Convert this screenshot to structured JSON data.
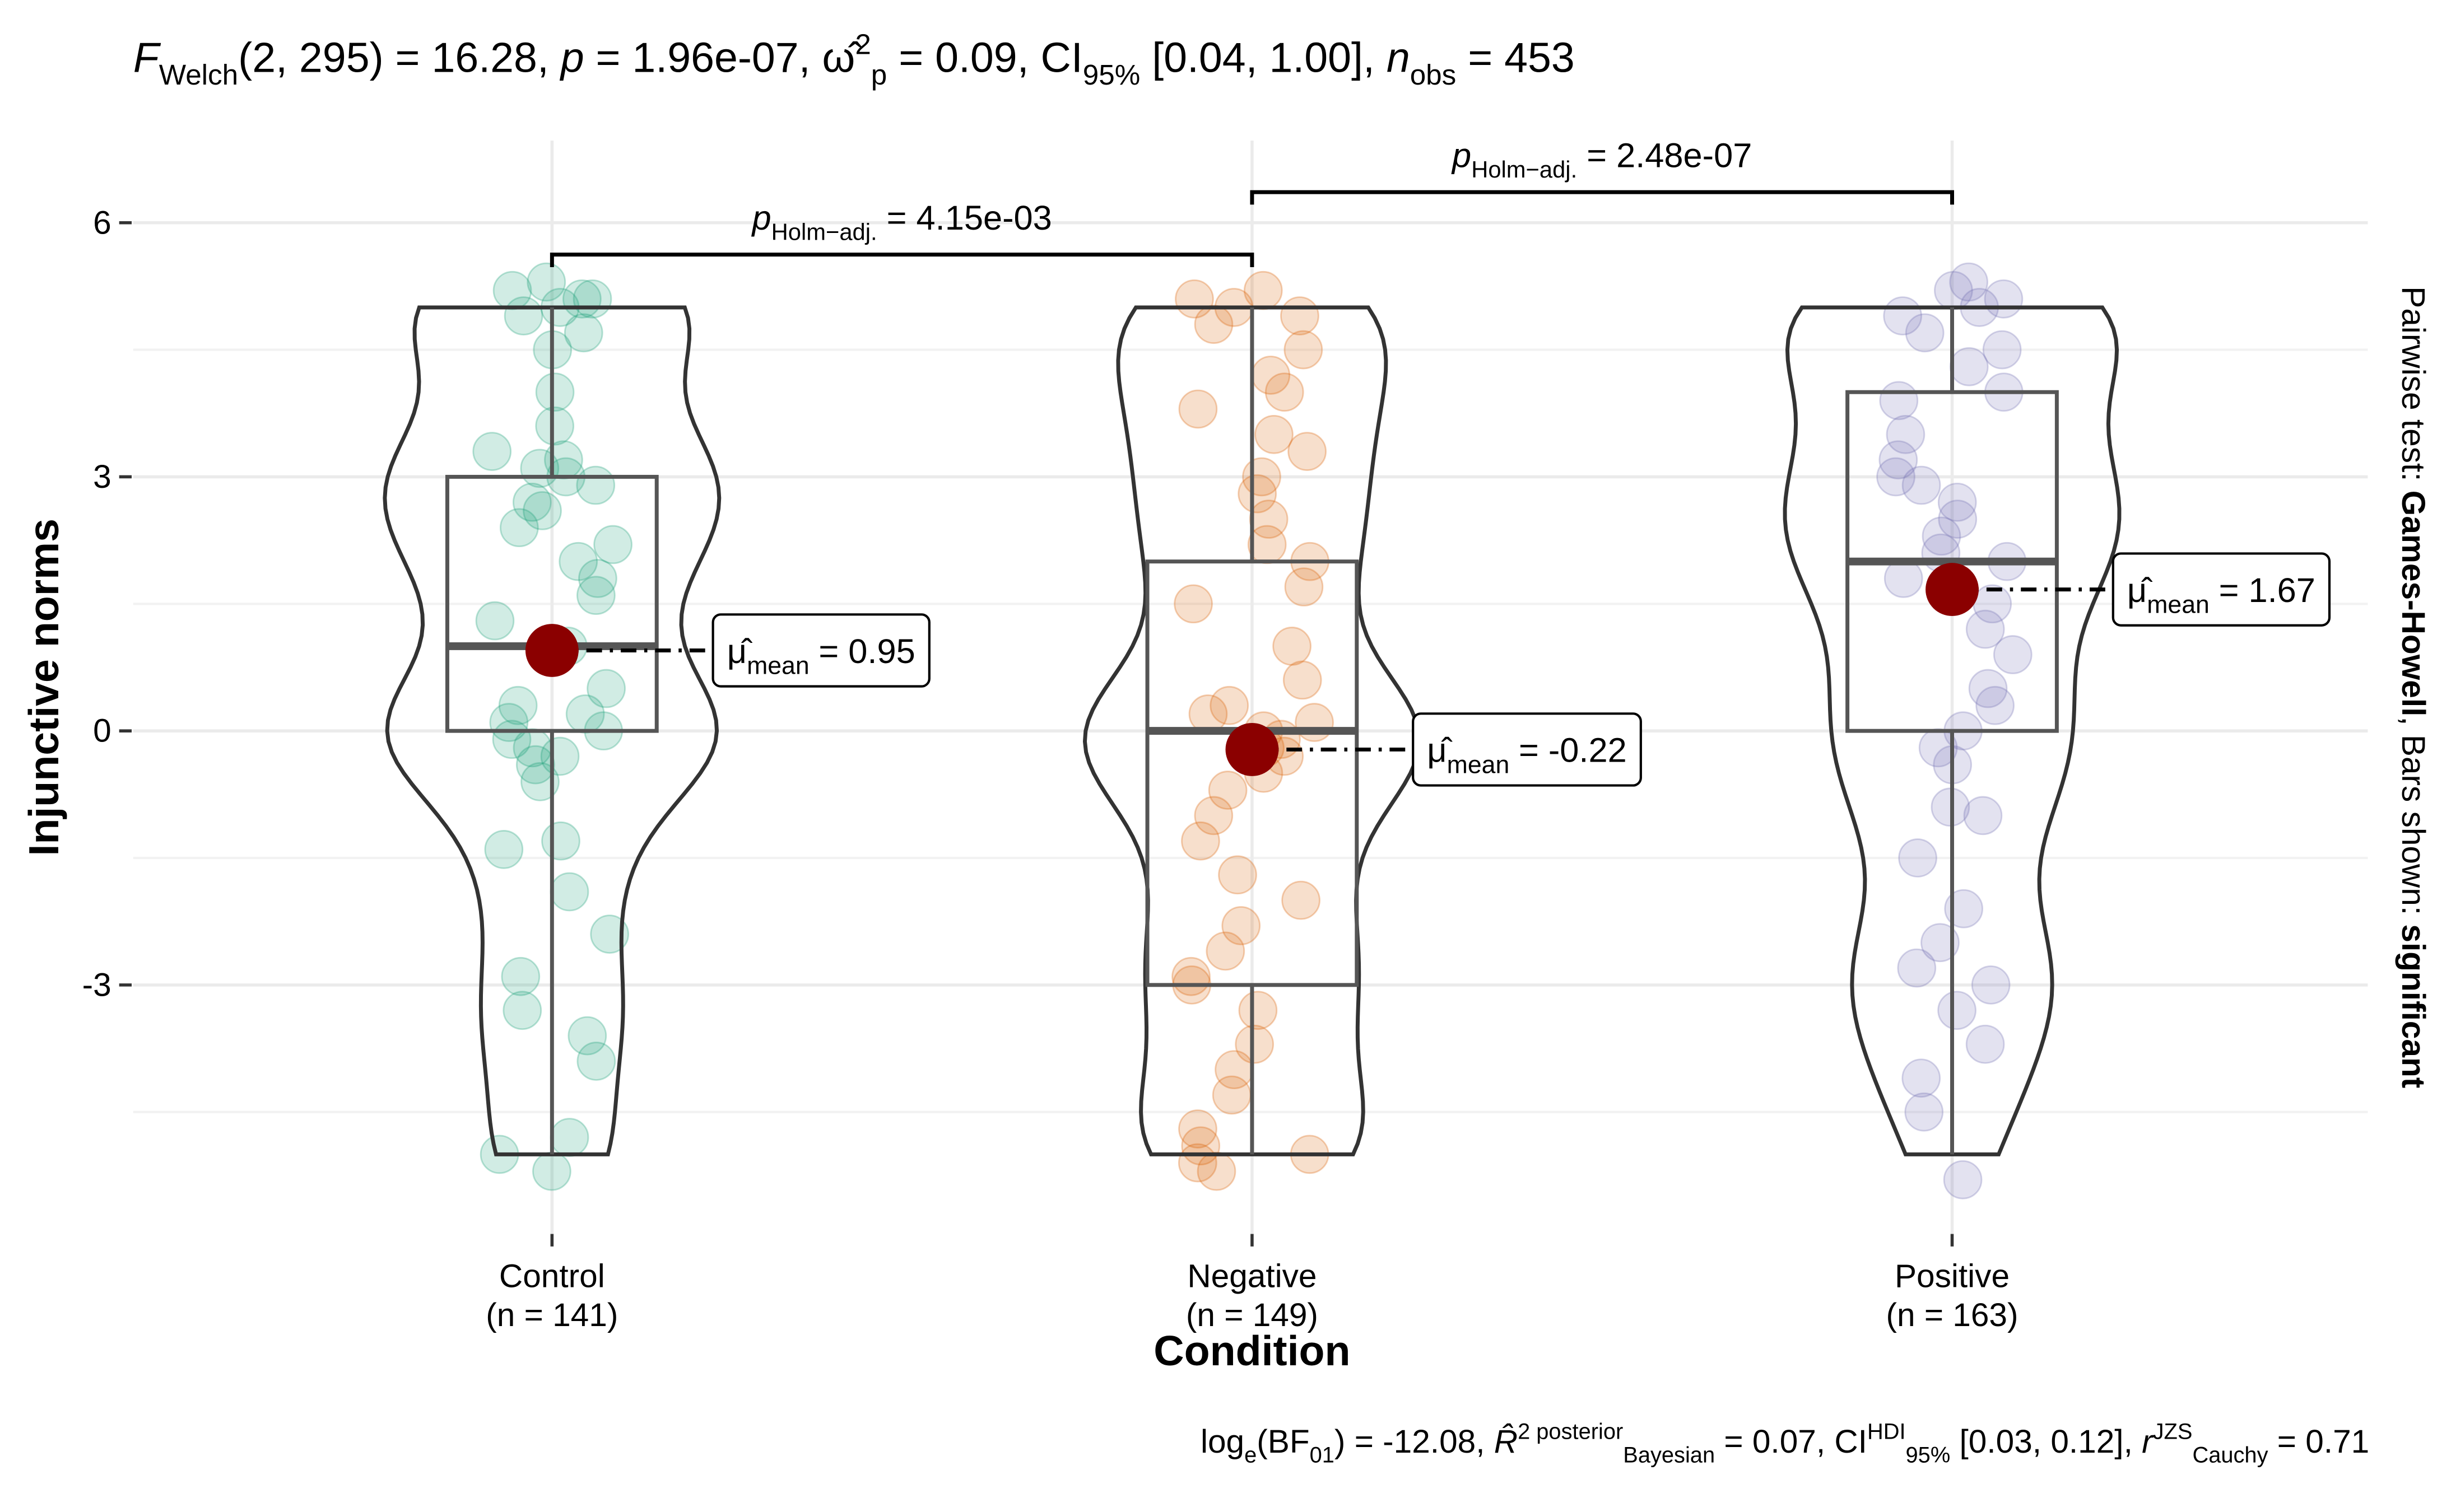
{
  "chart_data": {
    "type": "violin",
    "title_parts": [
      {
        "text": "F",
        "style": "italic"
      },
      {
        "text": "Welch",
        "style": "sub"
      },
      {
        "text": "(2, 295) = 16.28, "
      },
      {
        "text": "p",
        "style": "italic"
      },
      {
        "text": " = 1.96e-07, "
      },
      {
        "text": "ω̂"
      },
      {
        "text": "2",
        "style": "sup"
      },
      {
        "text": "p",
        "style": "sub"
      },
      {
        "text": " = 0.09, CI"
      },
      {
        "text": "95%",
        "style": "sub"
      },
      {
        "text": " [0.04, 1.00], "
      },
      {
        "text": "n",
        "style": "italic"
      },
      {
        "text": "obs",
        "style": "sub"
      },
      {
        "text": " = 453"
      }
    ],
    "caption_parts": [
      {
        "text": "log"
      },
      {
        "text": "e",
        "style": "sub"
      },
      {
        "text": "(BF"
      },
      {
        "text": "01",
        "style": "sub"
      },
      {
        "text": ") = -12.08, "
      },
      {
        "text": "R̂",
        "style": "italic"
      },
      {
        "text": "2 posterior",
        "style": "sup"
      },
      {
        "text": "Bayesian",
        "style": "sub"
      },
      {
        "text": " = 0.07, CI"
      },
      {
        "text": "HDI",
        "style": "sup"
      },
      {
        "text": "95%",
        "style": "sub"
      },
      {
        "text": " [0.03, 0.12], "
      },
      {
        "text": "r",
        "style": "italic"
      },
      {
        "text": "JZS",
        "style": "sup"
      },
      {
        "text": "Cauchy",
        "style": "sub"
      },
      {
        "text": " = 0.71"
      }
    ],
    "side_parts": [
      {
        "text": "Pairwise test: "
      },
      {
        "text": "Games-Howell",
        "style": "bold"
      },
      {
        "text": ", Bars shown: "
      },
      {
        "text": "significant",
        "style": "bold"
      }
    ],
    "x_label": "Condition",
    "y_label": "Injunctive norms",
    "categories": [
      "Control",
      "Negative",
      "Positive"
    ],
    "category_counts": [
      "(n = 141)",
      "(n = 149)",
      "(n = 163)"
    ],
    "mean_symbol": "μ̂",
    "mean_subscript": "mean",
    "series": [
      {
        "color": "#1b9e77",
        "values": [
          5.2,
          5.1,
          5.0,
          5.3,
          4.9,
          5.1,
          4.7,
          4.5,
          4.0,
          3.6,
          3.3,
          3.2,
          3.0,
          3.1,
          2.9,
          2.7,
          2.6,
          2.4,
          2.2,
          2.0,
          1.8,
          1.6,
          1.3,
          1.0,
          0.5,
          0.3,
          0.2,
          0.1,
          0.0,
          -0.1,
          -0.2,
          -0.3,
          -0.4,
          -0.6,
          -1.3,
          -1.4,
          -1.9,
          -2.4,
          -2.9,
          -3.3,
          -3.6,
          -3.9,
          -4.8,
          -5.0,
          -5.2
        ],
        "box": {
          "min": -5,
          "q1": 0,
          "median": 1,
          "q3": 3,
          "max": 5
        },
        "mean": 0.95,
        "mean_label": "= 0.95"
      },
      {
        "color": "#d95f02",
        "values": [
          5.2,
          5.1,
          5.0,
          4.9,
          4.8,
          4.5,
          4.2,
          4.0,
          3.8,
          3.5,
          3.3,
          3.0,
          2.8,
          2.5,
          2.2,
          2.0,
          1.7,
          1.5,
          1.0,
          0.6,
          0.3,
          0.2,
          0.1,
          0.0,
          -0.1,
          -0.2,
          -0.3,
          -0.5,
          -0.7,
          -1.0,
          -1.3,
          -1.7,
          -2.0,
          -2.3,
          -2.6,
          -2.9,
          -3.0,
          -3.3,
          -3.7,
          -4.0,
          -4.3,
          -4.7,
          -4.9,
          -5.0,
          -5.1,
          -5.2
        ],
        "box": {
          "min": -5,
          "q1": -3,
          "median": 0,
          "q3": 2,
          "max": 5
        },
        "mean": -0.22,
        "mean_label": "= -0.22"
      },
      {
        "color": "#7570b3",
        "values": [
          5.3,
          5.2,
          5.1,
          5.0,
          4.9,
          4.7,
          4.5,
          4.3,
          4.0,
          3.9,
          3.5,
          3.2,
          3.0,
          2.9,
          2.7,
          2.5,
          2.3,
          2.1,
          2.0,
          1.8,
          1.5,
          1.2,
          0.9,
          0.5,
          0.3,
          0.0,
          -0.2,
          -0.4,
          -0.9,
          -1.0,
          -1.5,
          -2.1,
          -2.5,
          -2.8,
          -3.0,
          -3.3,
          -3.7,
          -4.1,
          -4.5,
          -5.3
        ],
        "box": {
          "min": -5,
          "q1": 0,
          "median": 2,
          "q3": 4,
          "max": 5
        },
        "mean": 1.67,
        "mean_label": "= 1.67"
      }
    ],
    "mean_color": "#8b0000",
    "comparisons": [
      {
        "from": 0,
        "to": 1,
        "label_parts": [
          {
            "text": "p",
            "style": "italic"
          },
          {
            "text": "Holm−adj.",
            "style": "sub"
          },
          {
            "text": " = 4.15e-03"
          }
        ]
      },
      {
        "from": 1,
        "to": 2,
        "label_parts": [
          {
            "text": "p",
            "style": "italic"
          },
          {
            "text": "Holm−adj.",
            "style": "sub"
          },
          {
            "text": " = 2.48e-07"
          }
        ]
      }
    ],
    "ylim": [
      -5.94,
      6.97
    ],
    "yticks": [
      -3,
      0,
      3,
      6
    ],
    "grid": true
  }
}
